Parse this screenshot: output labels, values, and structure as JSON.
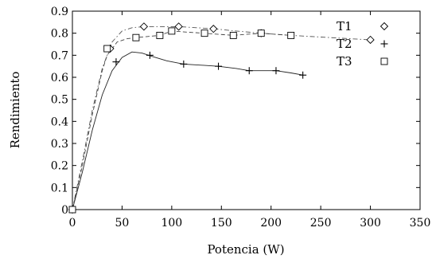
{
  "chart_data": {
    "type": "line",
    "xlabel": "Potencia (W)",
    "ylabel": "Rendimiento",
    "xlim": [
      0,
      350
    ],
    "ylim": [
      0,
      0.9
    ],
    "x_ticks": [
      "0",
      "50",
      "100",
      "150",
      "200",
      "250",
      "300",
      "350"
    ],
    "y_ticks": [
      "0",
      "0.1",
      "0.2",
      "0.3",
      "0.4",
      "0.5",
      "0.6",
      "0.7",
      "0.8",
      "0.9"
    ],
    "grid": false,
    "legend_position": "top-right",
    "series": [
      {
        "name": "T1",
        "marker": "diamond",
        "line_style": "dash-dot",
        "color": "#555555",
        "points": [
          [
            0,
            0
          ],
          [
            38,
            0.73
          ],
          [
            72,
            0.83
          ],
          [
            107,
            0.83
          ],
          [
            142,
            0.82
          ],
          [
            190,
            0.8
          ],
          [
            300,
            0.77
          ]
        ],
        "curve": [
          [
            0,
            0
          ],
          [
            10,
            0.22
          ],
          [
            20,
            0.45
          ],
          [
            30,
            0.64
          ],
          [
            40,
            0.76
          ],
          [
            50,
            0.81
          ],
          [
            60,
            0.825
          ],
          [
            72,
            0.83
          ],
          [
            90,
            0.83
          ],
          [
            107,
            0.83
          ],
          [
            125,
            0.825
          ],
          [
            142,
            0.82
          ],
          [
            165,
            0.81
          ],
          [
            190,
            0.8
          ],
          [
            220,
            0.79
          ],
          [
            260,
            0.78
          ],
          [
            300,
            0.77
          ]
        ]
      },
      {
        "name": "T2",
        "marker": "plus",
        "line_style": "solid",
        "color": "#222222",
        "points": [
          [
            0,
            0
          ],
          [
            44,
            0.67
          ],
          [
            78,
            0.7
          ],
          [
            112,
            0.66
          ],
          [
            147,
            0.65
          ],
          [
            178,
            0.63
          ],
          [
            205,
            0.63
          ],
          [
            232,
            0.61
          ]
        ],
        "curve": [
          [
            0,
            0
          ],
          [
            10,
            0.17
          ],
          [
            20,
            0.36
          ],
          [
            30,
            0.52
          ],
          [
            40,
            0.63
          ],
          [
            50,
            0.69
          ],
          [
            60,
            0.715
          ],
          [
            70,
            0.71
          ],
          [
            80,
            0.695
          ],
          [
            95,
            0.675
          ],
          [
            112,
            0.66
          ],
          [
            130,
            0.655
          ],
          [
            147,
            0.65
          ],
          [
            165,
            0.64
          ],
          [
            178,
            0.63
          ],
          [
            205,
            0.63
          ],
          [
            220,
            0.62
          ],
          [
            232,
            0.61
          ]
        ]
      },
      {
        "name": "T3",
        "marker": "square",
        "line_style": "dashed",
        "color": "#444444",
        "points": [
          [
            0,
            0
          ],
          [
            35,
            0.73
          ],
          [
            64,
            0.78
          ],
          [
            88,
            0.79
          ],
          [
            100,
            0.81
          ],
          [
            133,
            0.8
          ],
          [
            162,
            0.79
          ],
          [
            190,
            0.8
          ],
          [
            220,
            0.79
          ]
        ],
        "curve": [
          [
            0,
            0
          ],
          [
            10,
            0.2
          ],
          [
            20,
            0.43
          ],
          [
            30,
            0.63
          ],
          [
            35,
            0.7
          ],
          [
            45,
            0.76
          ],
          [
            55,
            0.775
          ],
          [
            64,
            0.78
          ],
          [
            76,
            0.785
          ],
          [
            88,
            0.79
          ],
          [
            100,
            0.81
          ],
          [
            115,
            0.805
          ],
          [
            133,
            0.8
          ],
          [
            148,
            0.795
          ],
          [
            162,
            0.79
          ],
          [
            175,
            0.795
          ],
          [
            190,
            0.8
          ],
          [
            205,
            0.795
          ],
          [
            220,
            0.79
          ]
        ]
      }
    ]
  }
}
